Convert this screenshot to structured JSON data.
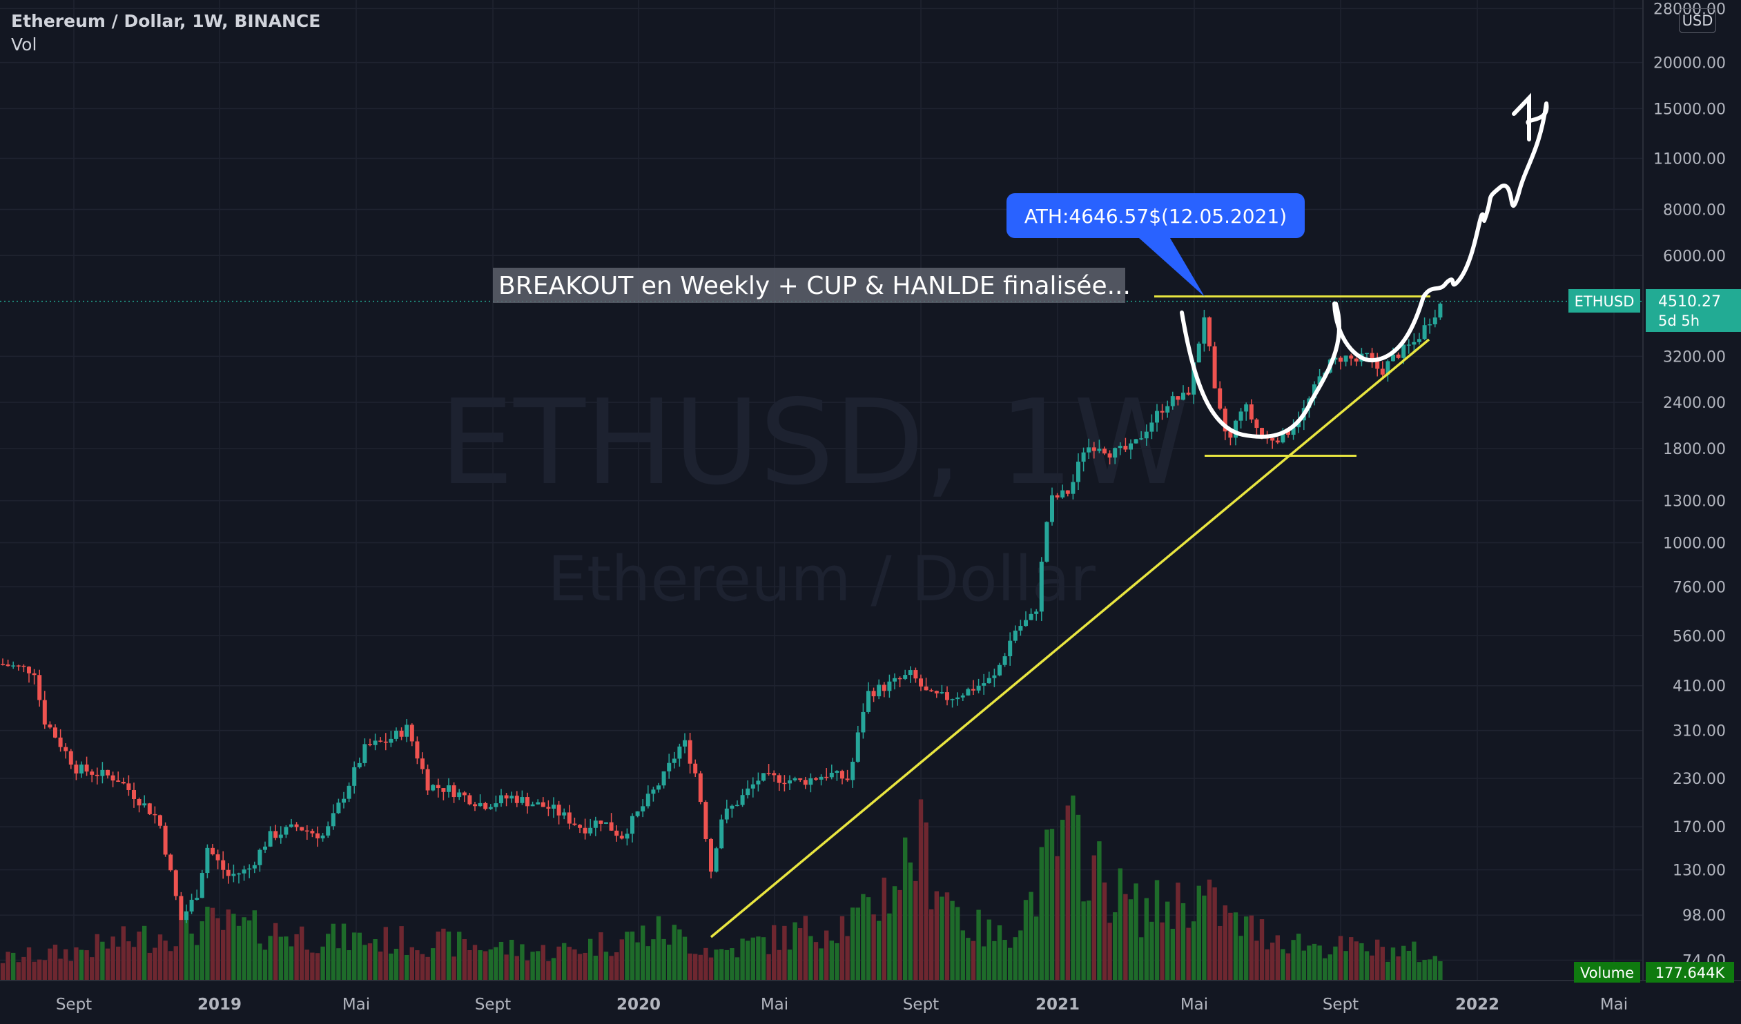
{
  "header": {
    "title": "Ethereum / Dollar, 1W, BINANCE",
    "indicator": "Vol",
    "currency_button": "USD"
  },
  "watermark": {
    "symbol": "ETHUSD, 1W",
    "name": "Ethereum / Dollar"
  },
  "annotations": {
    "ath": "ATH:4646.57$(12.05.2021)",
    "breakout": "BREAKOUT en Weekly + CUP & HANLDE finalisée..."
  },
  "price_badge": {
    "symbol": "ETHUSD",
    "price": "4510.27",
    "countdown": "5d 5h"
  },
  "volume_badge": {
    "label": "Volume",
    "value": "177.644K"
  },
  "colors": {
    "up": "#26a69a",
    "down": "#ef5350",
    "vol_up": "#1e6b2a",
    "vol_down": "#6e2730",
    "trendline": "#e9e640",
    "background": "#131722",
    "badge": "#22ab94",
    "callout": "#2962ff"
  },
  "chart_data": {
    "type": "candlestick",
    "y_scale": "log",
    "y_ticks": [
      "28000.00",
      "20000.00",
      "15000.00",
      "11000.00",
      "8000.00",
      "6000.00",
      "4510.27",
      "3200.00",
      "2400.00",
      "1800.00",
      "1300.00",
      "1000.00",
      "760.00",
      "560.00",
      "410.00",
      "310.00",
      "230.00",
      "170.00",
      "130.00",
      "98.00",
      "74.00"
    ],
    "x_ticks": [
      "Sept",
      "2019",
      "Mai",
      "Sept",
      "2020",
      "Mai",
      "Sept",
      "2021",
      "Mai",
      "Sept",
      "2022",
      "Mai"
    ],
    "series": [
      {
        "name": "Vol",
        "type": "volume"
      }
    ],
    "levels": {
      "ath_line": 4646.57,
      "cup_bottom": 1720
    }
  }
}
